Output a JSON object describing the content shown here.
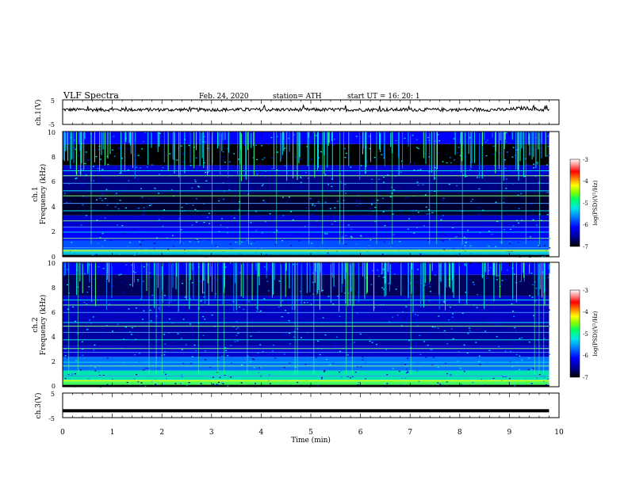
{
  "header": {
    "title": "VLF  Spectra",
    "date": "Feb. 24, 2020",
    "station": "station= ATH",
    "start_ut": "start  UT  =    16: 20: 1"
  },
  "chart_data": [
    {
      "type": "line",
      "id": "ch1",
      "ylabel": "ch.1(V)",
      "y_ticks": [
        "5",
        "-5"
      ],
      "ylim": [
        -5,
        5
      ],
      "xlim": [
        0,
        9.8
      ],
      "description_series": "noisy voltage trace near +1 V across the record",
      "series": [
        {
          "values_level": 1.0
        }
      ]
    },
    {
      "type": "heatmap",
      "id": "ch1_spec",
      "ylabel_top": "ch.1",
      "ylabel": "Frequency  (kHz)",
      "y_ticks": [
        "0",
        "2",
        "4",
        "6",
        "8",
        "10"
      ],
      "ylim": [
        0,
        10
      ],
      "xlim": [
        0,
        9.8
      ],
      "colorbar": {
        "label": "log(PSD)(V²/Hz)",
        "ticks": [
          "-3",
          "-4",
          "-5",
          "-6",
          "-7"
        ],
        "range": [
          -7,
          -3
        ]
      }
    },
    {
      "type": "heatmap",
      "id": "ch2_spec",
      "ylabel_top": "ch.2",
      "ylabel": "Frequency  (kHz)",
      "y_ticks": [
        "0",
        "2",
        "4",
        "6",
        "8",
        "10"
      ],
      "ylim": [
        0,
        10
      ],
      "xlim": [
        0,
        9.8
      ],
      "colorbar": {
        "label": "log(PSD)(V²/Hz)",
        "ticks": [
          "-3",
          "-4",
          "-5",
          "-6",
          "-7"
        ],
        "range": [
          -7,
          -3
        ]
      }
    },
    {
      "type": "line",
      "id": "ch3",
      "ylabel": "ch.3(V)",
      "y_ticks": [
        "5",
        "-5"
      ],
      "ylim": [
        -5,
        5
      ],
      "xlim": [
        0,
        9.8
      ],
      "series": [
        {
          "values_level": -2.2
        }
      ]
    }
  ],
  "x_axis": {
    "label": "Time  (min)",
    "ticks": [
      "0",
      "1",
      "2",
      "3",
      "4",
      "5",
      "6",
      "7",
      "8",
      "9",
      "10"
    ],
    "range": [
      0,
      10
    ]
  },
  "colors": {
    "frame": "#000000",
    "colormap": [
      "#000000",
      "#00008b",
      "#0000ff",
      "#0080ff",
      "#00e5e5",
      "#00ff66",
      "#80ff00",
      "#ffff00",
      "#ff8000",
      "#ff0000",
      "#ff9999",
      "#ffffff"
    ]
  }
}
